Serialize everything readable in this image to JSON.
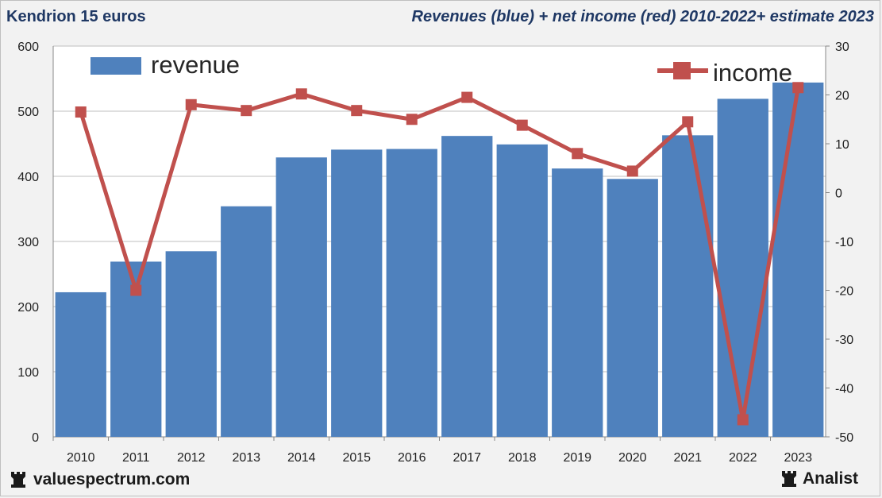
{
  "header": {
    "left_title": "Kendrion 15 euros",
    "right_title": "Revenues (blue) + net income (red) 2010-2022+ estimate 2023"
  },
  "footer": {
    "left_brand": "valuespectrum.com",
    "right_brand": "Analist"
  },
  "colors": {
    "bar": "#4f81bd",
    "line": "#c0504d",
    "grid": "#bfbfbf",
    "plot_bg": "#ffffff"
  },
  "chart_data": {
    "type": "bar",
    "categories": [
      "2010",
      "2011",
      "2012",
      "2013",
      "2014",
      "2015",
      "2016",
      "2017",
      "2018",
      "2019",
      "2020",
      "2021",
      "2022",
      "2023"
    ],
    "series": [
      {
        "name": "revenue",
        "type": "bar",
        "axis": "left",
        "values": [
          222,
          269,
          285,
          354,
          429,
          441,
          442,
          462,
          449,
          412,
          396,
          463,
          519,
          544
        ]
      },
      {
        "name": "income",
        "type": "line",
        "axis": "right",
        "values": [
          16.5,
          -20,
          18,
          16.8,
          20.2,
          16.8,
          15,
          19.5,
          13.8,
          8,
          4.4,
          14.5,
          -46.5,
          21.5
        ]
      }
    ],
    "y_left": {
      "min": 0,
      "max": 600,
      "ticks": [
        "0",
        "100",
        "200",
        "300",
        "400",
        "500",
        "600"
      ]
    },
    "y_right": {
      "min": -50,
      "max": 30,
      "ticks": [
        "-50",
        "-40",
        "-30",
        "-20",
        "-10",
        "0",
        "10",
        "20",
        "30"
      ]
    },
    "legend": [
      {
        "label": "revenue",
        "placement": "top-left"
      },
      {
        "label": "income",
        "placement": "top-right"
      }
    ],
    "grid": true
  }
}
